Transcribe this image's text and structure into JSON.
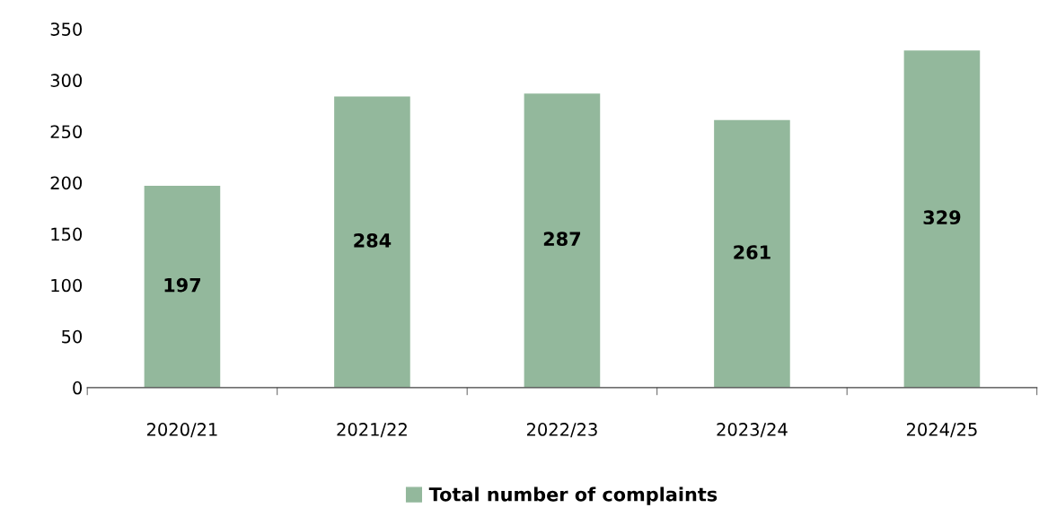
{
  "chart_data": {
    "type": "bar",
    "categories": [
      "2020/21",
      "2021/22",
      "2022/23",
      "2023/24",
      "2024/25"
    ],
    "series": [
      {
        "name": "Total number of complaints",
        "color": "#93b89c",
        "values": [
          197,
          284,
          287,
          261,
          329
        ]
      }
    ],
    "ylim": [
      0,
      350
    ],
    "yticks": [
      0,
      50,
      100,
      150,
      200,
      250,
      300,
      350
    ],
    "grid": false,
    "legend": "bottom",
    "data_labels": true
  }
}
